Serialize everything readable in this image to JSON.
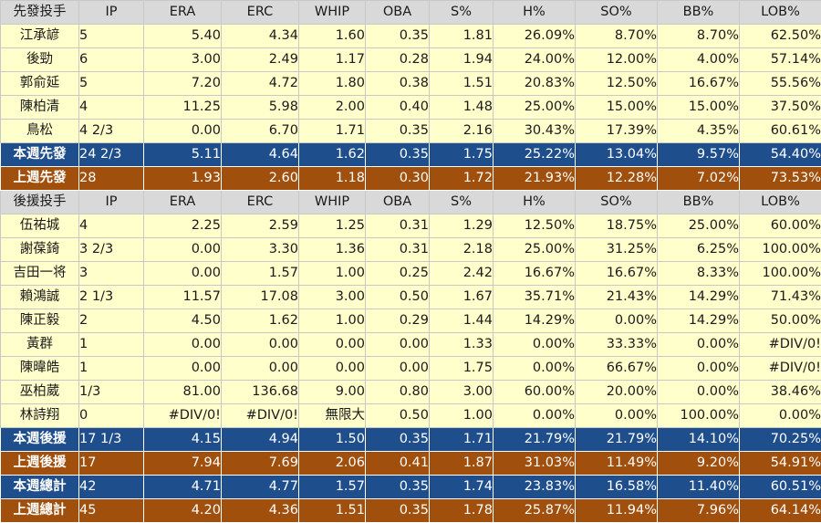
{
  "starter_header": {
    "label": "先發投手",
    "cols": [
      "IP",
      "ERA",
      "ERC",
      "WHIP",
      "OBA",
      "S%",
      "H%",
      "SO%",
      "BB%",
      "LOB%"
    ]
  },
  "starters": [
    {
      "name": "江承諺",
      "ip": "5",
      "era": "5.40",
      "erc": "4.34",
      "whip": "1.60",
      "oba": "0.35",
      "s": "1.81",
      "h": "26.09%",
      "so": "8.70%",
      "bb": "8.70%",
      "lob": "62.50%"
    },
    {
      "name": "後勁",
      "ip": "6",
      "era": "3.00",
      "erc": "2.49",
      "whip": "1.17",
      "oba": "0.28",
      "s": "1.94",
      "h": "24.00%",
      "so": "12.00%",
      "bb": "4.00%",
      "lob": "57.14%"
    },
    {
      "name": "郭俞延",
      "ip": "5",
      "era": "7.20",
      "erc": "4.72",
      "whip": "1.80",
      "oba": "0.38",
      "s": "1.51",
      "h": "20.83%",
      "so": "12.50%",
      "bb": "16.67%",
      "lob": "55.56%"
    },
    {
      "name": "陳柏清",
      "ip": "4",
      "era": "11.25",
      "erc": "5.98",
      "whip": "2.00",
      "oba": "0.40",
      "s": "1.48",
      "h": "25.00%",
      "so": "15.00%",
      "bb": "15.00%",
      "lob": "37.50%"
    },
    {
      "name": "鳥松",
      "ip": "4 2/3",
      "era": "0.00",
      "erc": "6.70",
      "whip": "1.71",
      "oba": "0.35",
      "s": "2.16",
      "h": "30.43%",
      "so": "17.39%",
      "bb": "4.35%",
      "lob": "60.61%"
    }
  ],
  "starter_week": {
    "name": "本週先發",
    "ip": "24 2/3",
    "era": "5.11",
    "erc": "4.64",
    "whip": "1.62",
    "oba": "0.35",
    "s": "1.75",
    "h": "25.22%",
    "so": "13.04%",
    "bb": "9.57%",
    "lob": "54.40%"
  },
  "starter_last_week": {
    "name": "上週先發",
    "ip": "28",
    "era": "1.93",
    "erc": "2.60",
    "whip": "1.18",
    "oba": "0.30",
    "s": "1.72",
    "h": "21.93%",
    "so": "12.28%",
    "bb": "7.02%",
    "lob": "73.53%"
  },
  "reliever_header": {
    "label": "後援投手",
    "cols": [
      "IP",
      "ERA",
      "ERC",
      "WHIP",
      "OBA",
      "S%",
      "H%",
      "SO%",
      "BB%",
      "LOB%"
    ]
  },
  "relievers": [
    {
      "name": "伍祐城",
      "ip": "4",
      "era": "2.25",
      "erc": "2.59",
      "whip": "1.25",
      "oba": "0.31",
      "s": "1.29",
      "h": "12.50%",
      "so": "18.75%",
      "bb": "25.00%",
      "lob": "60.00%"
    },
    {
      "name": "謝葆錡",
      "ip": "3 2/3",
      "era": "0.00",
      "erc": "3.30",
      "whip": "1.36",
      "oba": "0.31",
      "s": "2.18",
      "h": "25.00%",
      "so": "31.25%",
      "bb": "6.25%",
      "lob": "100.00%"
    },
    {
      "name": "吉田一将",
      "ip": "3",
      "era": "0.00",
      "erc": "1.57",
      "whip": "1.00",
      "oba": "0.25",
      "s": "2.42",
      "h": "16.67%",
      "so": "16.67%",
      "bb": "8.33%",
      "lob": "100.00%"
    },
    {
      "name": "賴鴻誠",
      "ip": "2 1/3",
      "era": "11.57",
      "erc": "17.08",
      "whip": "3.00",
      "oba": "0.50",
      "s": "1.67",
      "h": "35.71%",
      "so": "21.43%",
      "bb": "14.29%",
      "lob": "71.43%"
    },
    {
      "name": "陳正毅",
      "ip": "2",
      "era": "4.50",
      "erc": "1.62",
      "whip": "1.00",
      "oba": "0.29",
      "s": "1.44",
      "h": "14.29%",
      "so": "0.00%",
      "bb": "14.29%",
      "lob": "50.00%"
    },
    {
      "name": "黃群",
      "ip": "1",
      "era": "0.00",
      "erc": "0.00",
      "whip": "0.00",
      "oba": "0.00",
      "s": "1.33",
      "h": "0.00%",
      "so": "33.33%",
      "bb": "0.00%",
      "lob": "#DIV/0!"
    },
    {
      "name": "陳暐皓",
      "ip": "1",
      "era": "0.00",
      "erc": "0.00",
      "whip": "0.00",
      "oba": "0.00",
      "s": "1.75",
      "h": "0.00%",
      "so": "66.67%",
      "bb": "0.00%",
      "lob": "#DIV/0!"
    },
    {
      "name": "巫柏葳",
      "ip": "1/3",
      "era": "81.00",
      "erc": "136.68",
      "whip": "9.00",
      "oba": "0.80",
      "s": "3.00",
      "h": "60.00%",
      "so": "20.00%",
      "bb": "0.00%",
      "lob": "38.46%"
    },
    {
      "name": "林詩翔",
      "ip": "0",
      "era": "#DIV/0!",
      "erc": "#DIV/0!",
      "whip": "無限大",
      "oba": "0.50",
      "s": "1.00",
      "h": "0.00%",
      "so": "0.00%",
      "bb": "100.00%",
      "lob": "0.00%"
    }
  ],
  "reliever_week": {
    "name": "本週後援",
    "ip": "17 1/3",
    "era": "4.15",
    "erc": "4.94",
    "whip": "1.50",
    "oba": "0.35",
    "s": "1.71",
    "h": "21.79%",
    "so": "21.79%",
    "bb": "14.10%",
    "lob": "70.25%"
  },
  "reliever_last_week": {
    "name": "上週後援",
    "ip": "17",
    "era": "7.94",
    "erc": "7.69",
    "whip": "2.06",
    "oba": "0.41",
    "s": "1.87",
    "h": "31.03%",
    "so": "11.49%",
    "bb": "9.20%",
    "lob": "54.91%"
  },
  "total_week": {
    "name": "本週總計",
    "ip": "42",
    "era": "4.71",
    "erc": "4.77",
    "whip": "1.57",
    "oba": "0.35",
    "s": "1.74",
    "h": "23.83%",
    "so": "16.58%",
    "bb": "11.40%",
    "lob": "60.51%"
  },
  "total_last_week": {
    "name": "上週總計",
    "ip": "45",
    "era": "4.20",
    "erc": "4.36",
    "whip": "1.51",
    "oba": "0.35",
    "s": "1.78",
    "h": "25.87%",
    "so": "11.94%",
    "bb": "7.96%",
    "lob": "64.14%"
  },
  "colors": {
    "header_bg": "#d9d9d9",
    "data_bg": "#ffffcc",
    "this_week_bg": "#1f4e8c",
    "last_week_bg": "#a04f0d"
  }
}
